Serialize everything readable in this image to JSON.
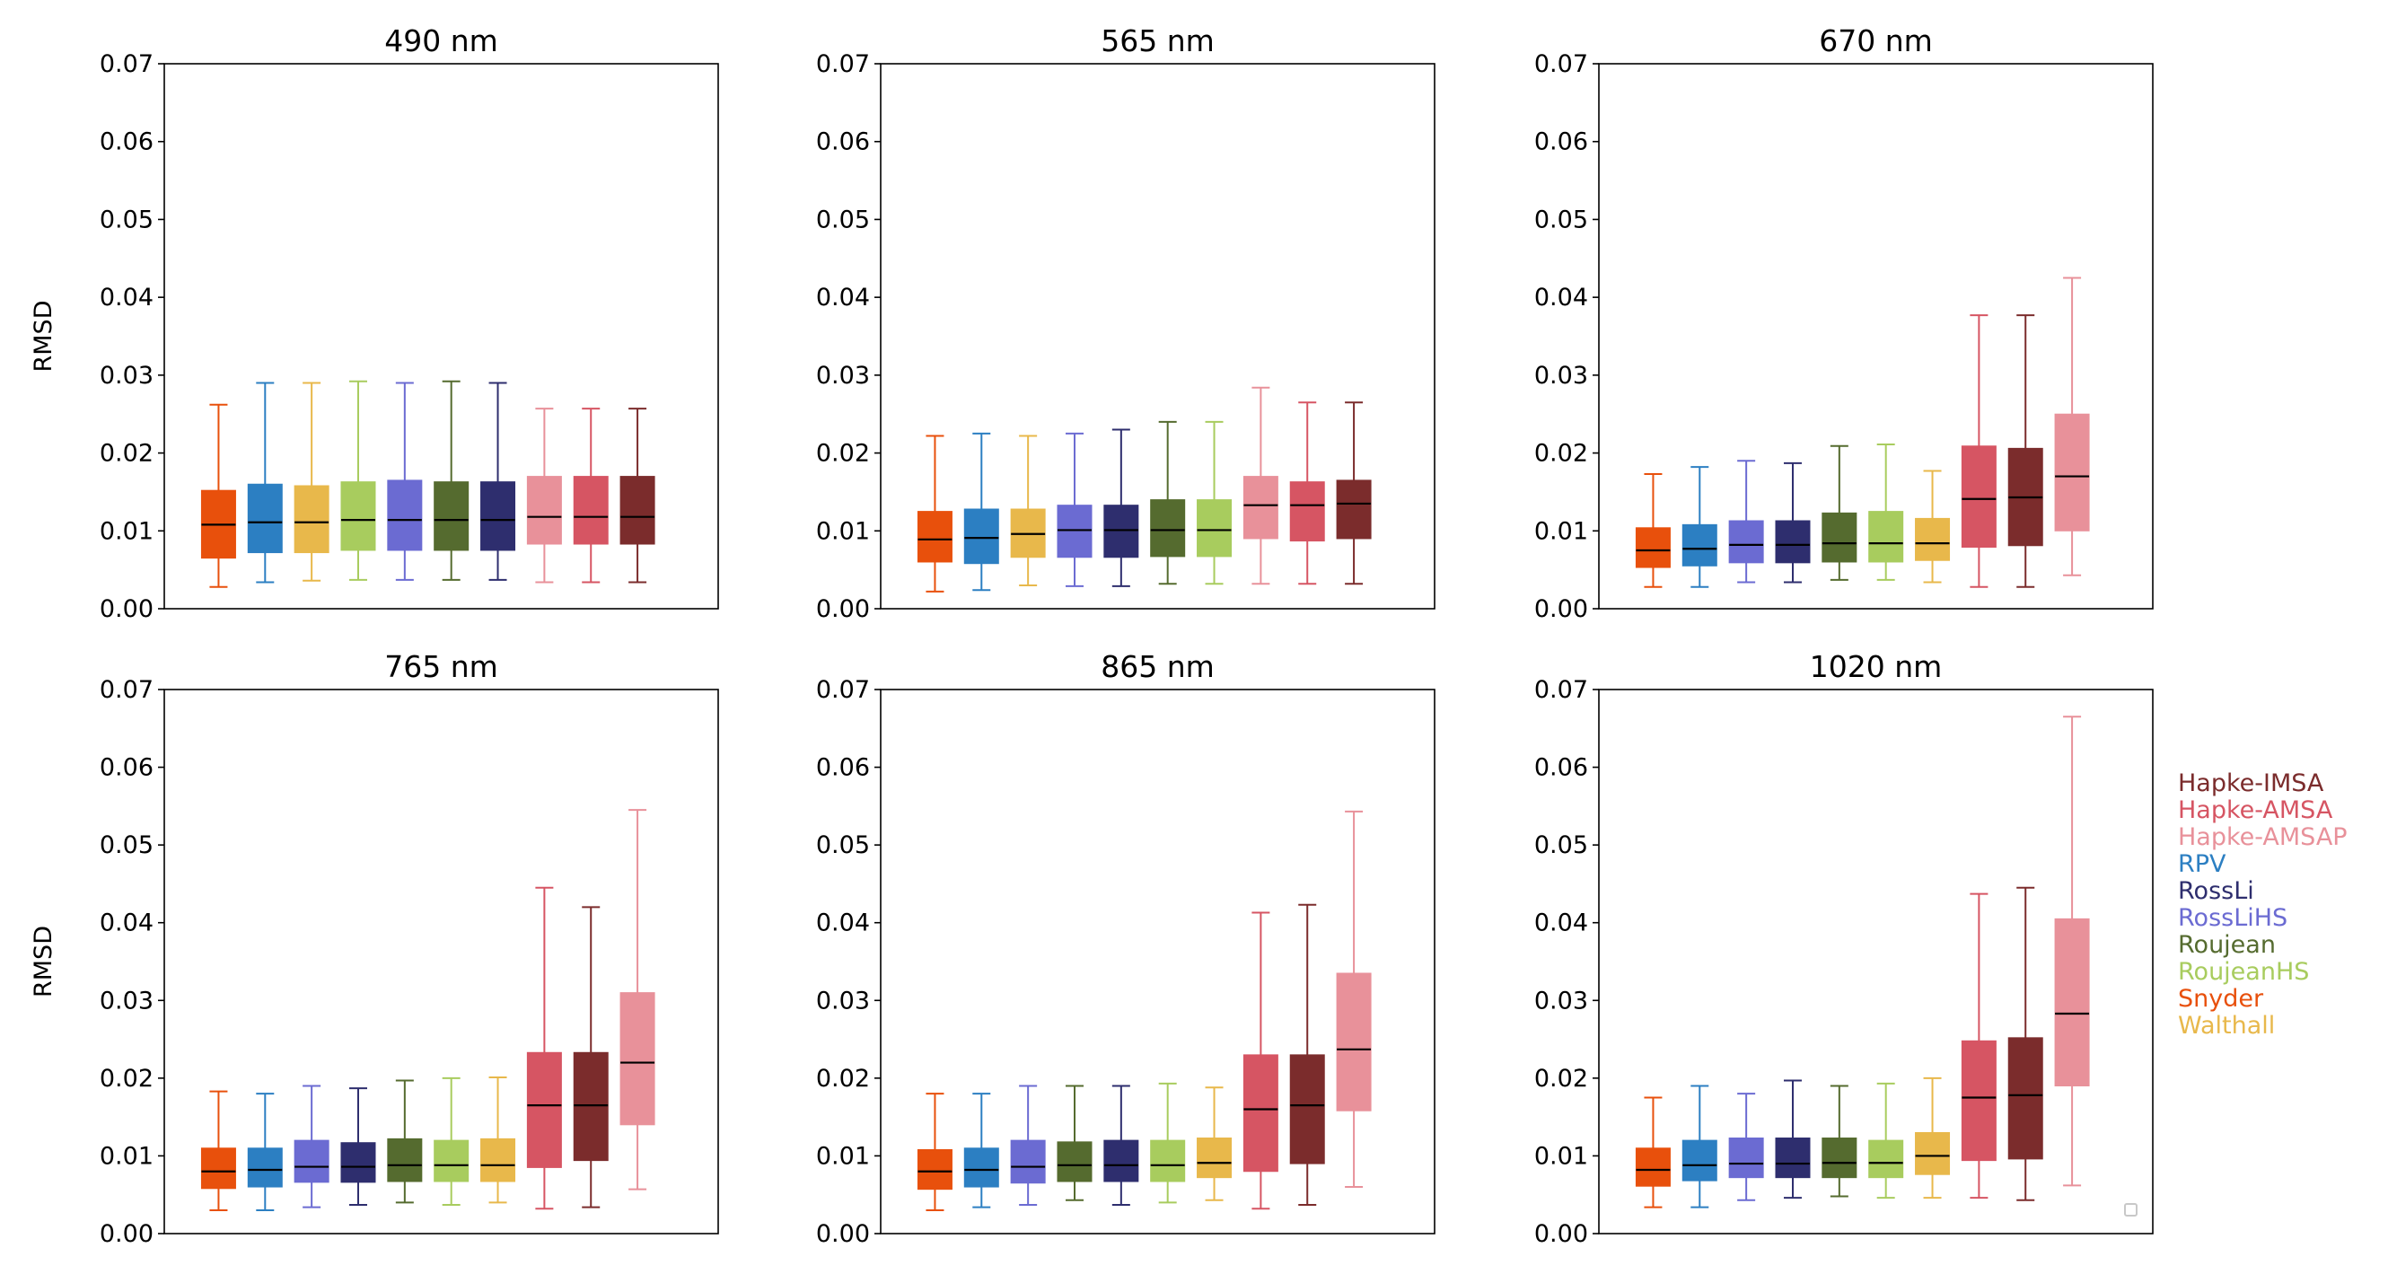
{
  "figure": {
    "ylabel": "RMSD",
    "ylim": [
      0,
      0.07
    ],
    "yticks": [
      "0.00",
      "0.01",
      "0.02",
      "0.03",
      "0.04",
      "0.05",
      "0.06",
      "0.07"
    ]
  },
  "legend": [
    {
      "label": "Hapke-IMSA",
      "color": "#7b2c2c"
    },
    {
      "label": "Hapke-AMSA",
      "color": "#d65563"
    },
    {
      "label": "Hapke-AMSAP",
      "color": "#e8919a"
    },
    {
      "label": "RPV",
      "color": "#2c7fc2"
    },
    {
      "label": "RossLi",
      "color": "#2e2e6e"
    },
    {
      "label": "RossLiHS",
      "color": "#6b6bd2"
    },
    {
      "label": "Roujean",
      "color": "#556b2f"
    },
    {
      "label": "RoujeanHS",
      "color": "#a8cc5e"
    },
    {
      "label": "Snyder",
      "color": "#e8500c"
    },
    {
      "label": "Walthall",
      "color": "#e8b84b"
    }
  ],
  "chart_data": [
    {
      "type": "box",
      "title": "490 nm",
      "ylabel": "RMSD",
      "ylim": [
        0,
        0.07
      ],
      "boxes": [
        {
          "model": "Snyder",
          "color": "#e8500c",
          "whislo": 0.0028,
          "q1": 0.0065,
          "med": 0.0108,
          "q3": 0.0152,
          "whishi": 0.0262
        },
        {
          "model": "RPV",
          "color": "#2c7fc2",
          "whislo": 0.0034,
          "q1": 0.0072,
          "med": 0.0111,
          "q3": 0.016,
          "whishi": 0.029
        },
        {
          "model": "Walthall",
          "color": "#e8b84b",
          "whislo": 0.0036,
          "q1": 0.0072,
          "med": 0.0111,
          "q3": 0.0158,
          "whishi": 0.029
        },
        {
          "model": "RoujeanHS",
          "color": "#a8cc5e",
          "whislo": 0.0037,
          "q1": 0.0075,
          "med": 0.0114,
          "q3": 0.0163,
          "whishi": 0.0292
        },
        {
          "model": "RossLiHS",
          "color": "#6b6bd2",
          "whislo": 0.0037,
          "q1": 0.0075,
          "med": 0.0114,
          "q3": 0.0165,
          "whishi": 0.029
        },
        {
          "model": "Roujean",
          "color": "#556b2f",
          "whislo": 0.0037,
          "q1": 0.0075,
          "med": 0.0114,
          "q3": 0.0163,
          "whishi": 0.0292
        },
        {
          "model": "RossLi",
          "color": "#2e2e6e",
          "whislo": 0.0037,
          "q1": 0.0075,
          "med": 0.0114,
          "q3": 0.0163,
          "whishi": 0.029
        },
        {
          "model": "Hapke-AMSAP",
          "color": "#e8919a",
          "whislo": 0.0034,
          "q1": 0.0083,
          "med": 0.0118,
          "q3": 0.017,
          "whishi": 0.0257
        },
        {
          "model": "Hapke-AMSA",
          "color": "#d65563",
          "whislo": 0.0034,
          "q1": 0.0083,
          "med": 0.0118,
          "q3": 0.017,
          "whishi": 0.0257
        },
        {
          "model": "Hapke-IMSA",
          "color": "#7b2c2c",
          "whislo": 0.0034,
          "q1": 0.0083,
          "med": 0.0118,
          "q3": 0.017,
          "whishi": 0.0257
        }
      ]
    },
    {
      "type": "box",
      "title": "565 nm",
      "ylabel": "",
      "ylim": [
        0,
        0.07
      ],
      "boxes": [
        {
          "model": "Snyder",
          "color": "#e8500c",
          "whislo": 0.0022,
          "q1": 0.006,
          "med": 0.0089,
          "q3": 0.0125,
          "whishi": 0.0222
        },
        {
          "model": "RPV",
          "color": "#2c7fc2",
          "whislo": 0.0024,
          "q1": 0.0058,
          "med": 0.0091,
          "q3": 0.0128,
          "whishi": 0.0225
        },
        {
          "model": "Walthall",
          "color": "#e8b84b",
          "whislo": 0.003,
          "q1": 0.0066,
          "med": 0.0096,
          "q3": 0.0128,
          "whishi": 0.0222
        },
        {
          "model": "RossLiHS",
          "color": "#6b6bd2",
          "whislo": 0.0029,
          "q1": 0.0066,
          "med": 0.0101,
          "q3": 0.0133,
          "whishi": 0.0225
        },
        {
          "model": "RossLi",
          "color": "#2e2e6e",
          "whislo": 0.0029,
          "q1": 0.0066,
          "med": 0.0101,
          "q3": 0.0133,
          "whishi": 0.023
        },
        {
          "model": "Roujean",
          "color": "#556b2f",
          "whislo": 0.0032,
          "q1": 0.0067,
          "med": 0.0101,
          "q3": 0.014,
          "whishi": 0.024
        },
        {
          "model": "RoujeanHS",
          "color": "#a8cc5e",
          "whislo": 0.0032,
          "q1": 0.0067,
          "med": 0.0101,
          "q3": 0.014,
          "whishi": 0.024
        },
        {
          "model": "Hapke-AMSAP",
          "color": "#e8919a",
          "whislo": 0.0032,
          "q1": 0.009,
          "med": 0.0133,
          "q3": 0.017,
          "whishi": 0.0284
        },
        {
          "model": "Hapke-AMSA",
          "color": "#d65563",
          "whislo": 0.0032,
          "q1": 0.0087,
          "med": 0.0133,
          "q3": 0.0163,
          "whishi": 0.0265
        },
        {
          "model": "Hapke-IMSA",
          "color": "#7b2c2c",
          "whislo": 0.0032,
          "q1": 0.009,
          "med": 0.0135,
          "q3": 0.0165,
          "whishi": 0.0265
        }
      ]
    },
    {
      "type": "box",
      "title": "670 nm",
      "ylabel": "",
      "ylim": [
        0,
        0.07
      ],
      "boxes": [
        {
          "model": "Snyder",
          "color": "#e8500c",
          "whislo": 0.0028,
          "q1": 0.0053,
          "med": 0.0075,
          "q3": 0.0104,
          "whishi": 0.0173
        },
        {
          "model": "RPV",
          "color": "#2c7fc2",
          "whislo": 0.0028,
          "q1": 0.0055,
          "med": 0.0077,
          "q3": 0.0108,
          "whishi": 0.0182
        },
        {
          "model": "RossLiHS",
          "color": "#6b6bd2",
          "whislo": 0.0034,
          "q1": 0.0059,
          "med": 0.0082,
          "q3": 0.0113,
          "whishi": 0.019
        },
        {
          "model": "RossLi",
          "color": "#2e2e6e",
          "whislo": 0.0034,
          "q1": 0.0059,
          "med": 0.0082,
          "q3": 0.0113,
          "whishi": 0.0187
        },
        {
          "model": "Roujean",
          "color": "#556b2f",
          "whislo": 0.0037,
          "q1": 0.006,
          "med": 0.0084,
          "q3": 0.0123,
          "whishi": 0.0209
        },
        {
          "model": "RoujeanHS",
          "color": "#a8cc5e",
          "whislo": 0.0037,
          "q1": 0.006,
          "med": 0.0084,
          "q3": 0.0125,
          "whishi": 0.0211
        },
        {
          "model": "Walthall",
          "color": "#e8b84b",
          "whislo": 0.0034,
          "q1": 0.0062,
          "med": 0.0084,
          "q3": 0.0116,
          "whishi": 0.0177
        },
        {
          "model": "Hapke-AMSA",
          "color": "#d65563",
          "whislo": 0.0028,
          "q1": 0.0079,
          "med": 0.0141,
          "q3": 0.0209,
          "whishi": 0.0377
        },
        {
          "model": "Hapke-IMSA",
          "color": "#7b2c2c",
          "whislo": 0.0028,
          "q1": 0.0081,
          "med": 0.0143,
          "q3": 0.0206,
          "whishi": 0.0377
        },
        {
          "model": "Hapke-AMSAP",
          "color": "#e8919a",
          "whislo": 0.0043,
          "q1": 0.01,
          "med": 0.017,
          "q3": 0.025,
          "whishi": 0.0425
        }
      ]
    },
    {
      "type": "box",
      "title": "765 nm",
      "ylabel": "RMSD",
      "ylim": [
        0,
        0.07
      ],
      "boxes": [
        {
          "model": "Snyder",
          "color": "#e8500c",
          "whislo": 0.003,
          "q1": 0.0058,
          "med": 0.008,
          "q3": 0.011,
          "whishi": 0.0183
        },
        {
          "model": "RPV",
          "color": "#2c7fc2",
          "whislo": 0.003,
          "q1": 0.006,
          "med": 0.0082,
          "q3": 0.011,
          "whishi": 0.018
        },
        {
          "model": "RossLiHS",
          "color": "#6b6bd2",
          "whislo": 0.0034,
          "q1": 0.0066,
          "med": 0.0086,
          "q3": 0.012,
          "whishi": 0.019
        },
        {
          "model": "RossLi",
          "color": "#2e2e6e",
          "whislo": 0.0037,
          "q1": 0.0066,
          "med": 0.0086,
          "q3": 0.0117,
          "whishi": 0.0187
        },
        {
          "model": "Roujean",
          "color": "#556b2f",
          "whislo": 0.004,
          "q1": 0.0067,
          "med": 0.0088,
          "q3": 0.0122,
          "whishi": 0.0197
        },
        {
          "model": "RoujeanHS",
          "color": "#a8cc5e",
          "whislo": 0.0037,
          "q1": 0.0067,
          "med": 0.0088,
          "q3": 0.012,
          "whishi": 0.02
        },
        {
          "model": "Walthall",
          "color": "#e8b84b",
          "whislo": 0.004,
          "q1": 0.0067,
          "med": 0.0088,
          "q3": 0.0122,
          "whishi": 0.0201
        },
        {
          "model": "Hapke-AMSA",
          "color": "#d65563",
          "whislo": 0.0032,
          "q1": 0.0085,
          "med": 0.0165,
          "q3": 0.0233,
          "whishi": 0.0445
        },
        {
          "model": "Hapke-IMSA",
          "color": "#7b2c2c",
          "whislo": 0.0034,
          "q1": 0.0094,
          "med": 0.0165,
          "q3": 0.0233,
          "whishi": 0.042
        },
        {
          "model": "Hapke-AMSAP",
          "color": "#e8919a",
          "whislo": 0.0057,
          "q1": 0.014,
          "med": 0.022,
          "q3": 0.031,
          "whishi": 0.0545
        }
      ]
    },
    {
      "type": "box",
      "title": "865 nm",
      "ylabel": "",
      "ylim": [
        0,
        0.07
      ],
      "boxes": [
        {
          "model": "Snyder",
          "color": "#e8500c",
          "whislo": 0.003,
          "q1": 0.0057,
          "med": 0.008,
          "q3": 0.0108,
          "whishi": 0.018
        },
        {
          "model": "RPV",
          "color": "#2c7fc2",
          "whislo": 0.0034,
          "q1": 0.006,
          "med": 0.0082,
          "q3": 0.011,
          "whishi": 0.018
        },
        {
          "model": "RossLiHS",
          "color": "#6b6bd2",
          "whislo": 0.0037,
          "q1": 0.0065,
          "med": 0.0086,
          "q3": 0.012,
          "whishi": 0.019
        },
        {
          "model": "Roujean",
          "color": "#556b2f",
          "whislo": 0.0043,
          "q1": 0.0067,
          "med": 0.0088,
          "q3": 0.0118,
          "whishi": 0.019
        },
        {
          "model": "RossLi",
          "color": "#2e2e6e",
          "whislo": 0.0037,
          "q1": 0.0067,
          "med": 0.0088,
          "q3": 0.012,
          "whishi": 0.019
        },
        {
          "model": "RoujeanHS",
          "color": "#a8cc5e",
          "whislo": 0.004,
          "q1": 0.0067,
          "med": 0.0088,
          "q3": 0.012,
          "whishi": 0.0193
        },
        {
          "model": "Walthall",
          "color": "#e8b84b",
          "whislo": 0.0043,
          "q1": 0.0072,
          "med": 0.0091,
          "q3": 0.0123,
          "whishi": 0.0188
        },
        {
          "model": "Hapke-AMSA",
          "color": "#d65563",
          "whislo": 0.0032,
          "q1": 0.008,
          "med": 0.016,
          "q3": 0.023,
          "whishi": 0.0413
        },
        {
          "model": "Hapke-IMSA",
          "color": "#7b2c2c",
          "whislo": 0.0037,
          "q1": 0.009,
          "med": 0.0165,
          "q3": 0.023,
          "whishi": 0.0423
        },
        {
          "model": "Hapke-AMSAP",
          "color": "#e8919a",
          "whislo": 0.006,
          "q1": 0.0158,
          "med": 0.0237,
          "q3": 0.0335,
          "whishi": 0.0543
        }
      ]
    },
    {
      "type": "box",
      "title": "1020 nm",
      "ylabel": "",
      "ylim": [
        0,
        0.07
      ],
      "boxes": [
        {
          "model": "Snyder",
          "color": "#e8500c",
          "whislo": 0.0034,
          "q1": 0.0061,
          "med": 0.0082,
          "q3": 0.011,
          "whishi": 0.0175
        },
        {
          "model": "RPV",
          "color": "#2c7fc2",
          "whislo": 0.0034,
          "q1": 0.0068,
          "med": 0.0088,
          "q3": 0.012,
          "whishi": 0.019
        },
        {
          "model": "RossLiHS",
          "color": "#6b6bd2",
          "whislo": 0.0043,
          "q1": 0.0072,
          "med": 0.009,
          "q3": 0.0123,
          "whishi": 0.018
        },
        {
          "model": "RossLi",
          "color": "#2e2e6e",
          "whislo": 0.0046,
          "q1": 0.0072,
          "med": 0.009,
          "q3": 0.0123,
          "whishi": 0.0197
        },
        {
          "model": "Roujean",
          "color": "#556b2f",
          "whislo": 0.0048,
          "q1": 0.0072,
          "med": 0.0091,
          "q3": 0.0123,
          "whishi": 0.019
        },
        {
          "model": "RoujeanHS",
          "color": "#a8cc5e",
          "whislo": 0.0046,
          "q1": 0.0072,
          "med": 0.0091,
          "q3": 0.012,
          "whishi": 0.0193
        },
        {
          "model": "Walthall",
          "color": "#e8b84b",
          "whislo": 0.0046,
          "q1": 0.0076,
          "med": 0.01,
          "q3": 0.013,
          "whishi": 0.02
        },
        {
          "model": "Hapke-AMSA",
          "color": "#d65563",
          "whislo": 0.0046,
          "q1": 0.0094,
          "med": 0.0175,
          "q3": 0.0248,
          "whishi": 0.0437
        },
        {
          "model": "Hapke-IMSA",
          "color": "#7b2c2c",
          "whislo": 0.0043,
          "q1": 0.0096,
          "med": 0.0178,
          "q3": 0.0252,
          "whishi": 0.0445
        },
        {
          "model": "Hapke-AMSAP",
          "color": "#e8919a",
          "whislo": 0.0062,
          "q1": 0.019,
          "med": 0.0283,
          "q3": 0.0405,
          "whishi": 0.0665
        }
      ]
    }
  ]
}
